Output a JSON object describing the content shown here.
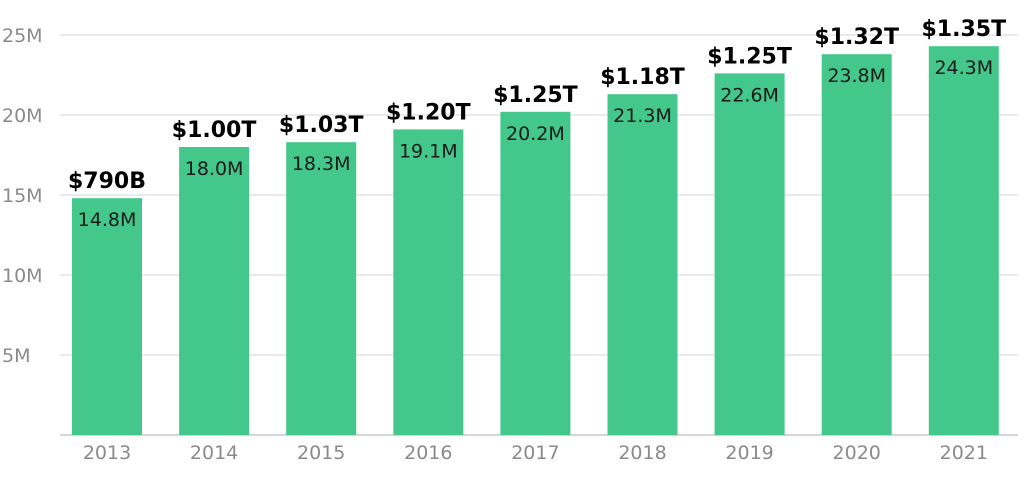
{
  "chart_data": {
    "type": "bar",
    "categories": [
      "2013",
      "2014",
      "2015",
      "2016",
      "2017",
      "2018",
      "2019",
      "2020",
      "2021"
    ],
    "values": [
      14.8,
      18.0,
      18.3,
      19.1,
      20.2,
      21.3,
      22.6,
      23.8,
      24.3
    ],
    "value_labels": [
      "14.8M",
      "18.0M",
      "18.3M",
      "19.1M",
      "20.2M",
      "21.3M",
      "22.6M",
      "23.8M",
      "24.3M"
    ],
    "annotations": [
      "$790B",
      "$1.00T",
      "$1.03T",
      "$1.20T",
      "$1.25T",
      "$1.18T",
      "$1.25T",
      "$1.32T",
      "$1.35T"
    ],
    "yticks": [
      5,
      10,
      15,
      20,
      25
    ],
    "ytick_labels": [
      "5M",
      "10M",
      "15M",
      "20M",
      "25M"
    ],
    "ylim": [
      0,
      25
    ],
    "grid": true,
    "legend": "none",
    "title": "",
    "xlabel": "",
    "ylabel": "",
    "colors": {
      "bar": "#44c78b",
      "grid": "#e3e3e3",
      "tick_text": "#8a8a8a",
      "annotation_text": "#000000"
    }
  }
}
